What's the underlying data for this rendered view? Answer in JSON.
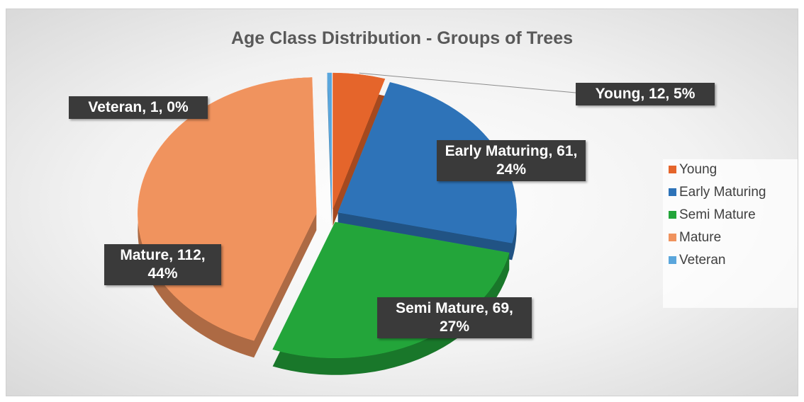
{
  "chart_data": {
    "type": "pie",
    "title": "Age Class Distribution - Groups of Trees",
    "categories": [
      "Young",
      "Early Maturing",
      "Semi Mature",
      "Mature",
      "Veteran"
    ],
    "values": [
      12,
      61,
      69,
      112,
      1
    ],
    "value_labels": [
      "Young, 12, 5%",
      "Early Maturing, 61, 24%",
      "Semi Mature, 69, 27%",
      "Mature, 112, 44%",
      "Veteran, 1, 0%"
    ],
    "colors": [
      "#e5652b",
      "#2e73b8",
      "#23a53a",
      "#f0935e",
      "#5aa6dc"
    ],
    "legend": "right"
  }
}
